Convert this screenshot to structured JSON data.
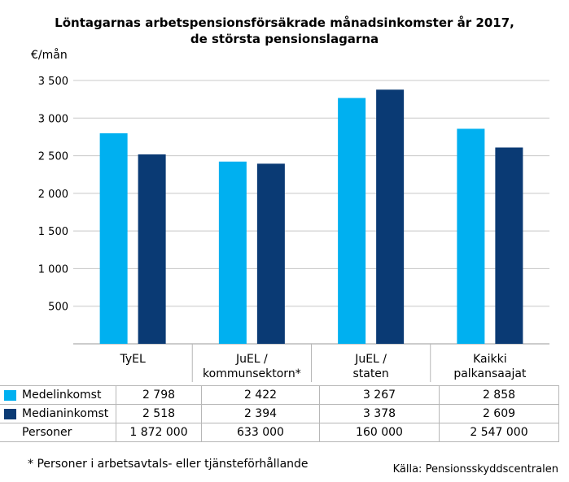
{
  "title_line1": "Löntagarnas arbetspensionsförsäkrade månadsinkomster år 2017,",
  "title_line2": "de största pensionslagarna",
  "unit_label": "€/mån",
  "footnote": "* Personer i arbetsavtals- eller tjänsteförhållande",
  "source": "Källa: Pensionsskyddscentralen",
  "colors": {
    "medel": "#00b0f0",
    "median": "#0a3a74",
    "grid": "#c8c8c8"
  },
  "chart_data": {
    "type": "bar",
    "categories": [
      [
        "TyEL"
      ],
      [
        "JuEL /",
        "kommunsektorn*"
      ],
      [
        "JuEL /",
        "staten"
      ],
      [
        "Kaikki",
        "palkansaajat"
      ]
    ],
    "series": [
      {
        "name": "Medelinkomst",
        "values": [
          2798,
          2422,
          3267,
          2858
        ]
      },
      {
        "name": "Medianinkomst",
        "values": [
          2518,
          2394,
          3378,
          2609
        ]
      }
    ],
    "yticks": [
      "500",
      "1 000",
      "1 500",
      "2 000",
      "2 500",
      "3 000",
      "3 500"
    ],
    "ytick_values": [
      500,
      1000,
      1500,
      2000,
      2500,
      3000,
      3500
    ],
    "ylim": [
      0,
      3500
    ],
    "ylabel": "€/mån"
  },
  "table": {
    "rows": [
      {
        "label": "Medelinkomst",
        "swatch": "medel",
        "cells": [
          "2 798",
          "2 422",
          "3 267",
          "2 858"
        ]
      },
      {
        "label": "Medianinkomst",
        "swatch": "median",
        "cells": [
          "2 518",
          "2 394",
          "3 378",
          "2 609"
        ]
      },
      {
        "label": "Personer",
        "swatch": null,
        "cells": [
          "1 872 000",
          "633 000",
          "160 000",
          "2 547 000"
        ]
      }
    ]
  }
}
